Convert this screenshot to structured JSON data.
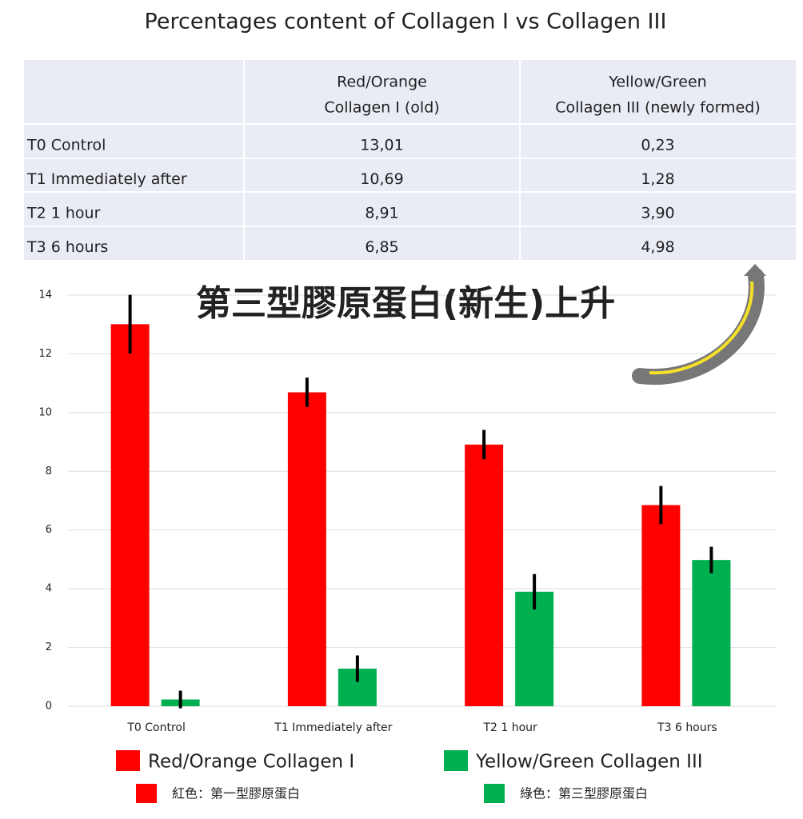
{
  "table": {
    "columns": [
      [
        "Red/Orange",
        "Collagen I (old)"
      ],
      [
        "Yellow/Green",
        "Collagen III (newly formed)"
      ]
    ],
    "rows": [
      [
        "T0 Control",
        "13,01",
        "0,23"
      ],
      [
        "T1 Immediately after",
        "10,69",
        "1,28"
      ],
      [
        "T2 1 hour",
        "8,91",
        "3,90"
      ],
      [
        "T3 6 hours",
        "6,85",
        "4,98"
      ]
    ]
  },
  "chart_data": {
    "type": "bar",
    "title": "Percentages content of Collagen I vs Collagen III",
    "annotation": "第三型膠原蛋白(新生)上升",
    "categories": [
      "T0 Control",
      "T1 Immediately after",
      "T2 1 hour",
      "T3 6 hours"
    ],
    "series": [
      {
        "name": "Red/Orange Collagen I",
        "note": "紅色：第一型膠原蛋白",
        "color": "#ff0000",
        "values": [
          13.01,
          10.69,
          8.91,
          6.85
        ],
        "errors": [
          1.0,
          0.5,
          0.5,
          0.65
        ]
      },
      {
        "name": "Yellow/Green Collagen III",
        "note": "綠色：第三型膠原蛋白",
        "color": "#00b050",
        "values": [
          0.23,
          1.28,
          3.9,
          4.98
        ],
        "errors": [
          0.3,
          0.45,
          0.6,
          0.45
        ]
      }
    ],
    "ylim": [
      0,
      14
    ],
    "yticks": [
      0,
      2,
      4,
      6,
      8,
      10,
      12,
      14
    ],
    "grid": true
  }
}
